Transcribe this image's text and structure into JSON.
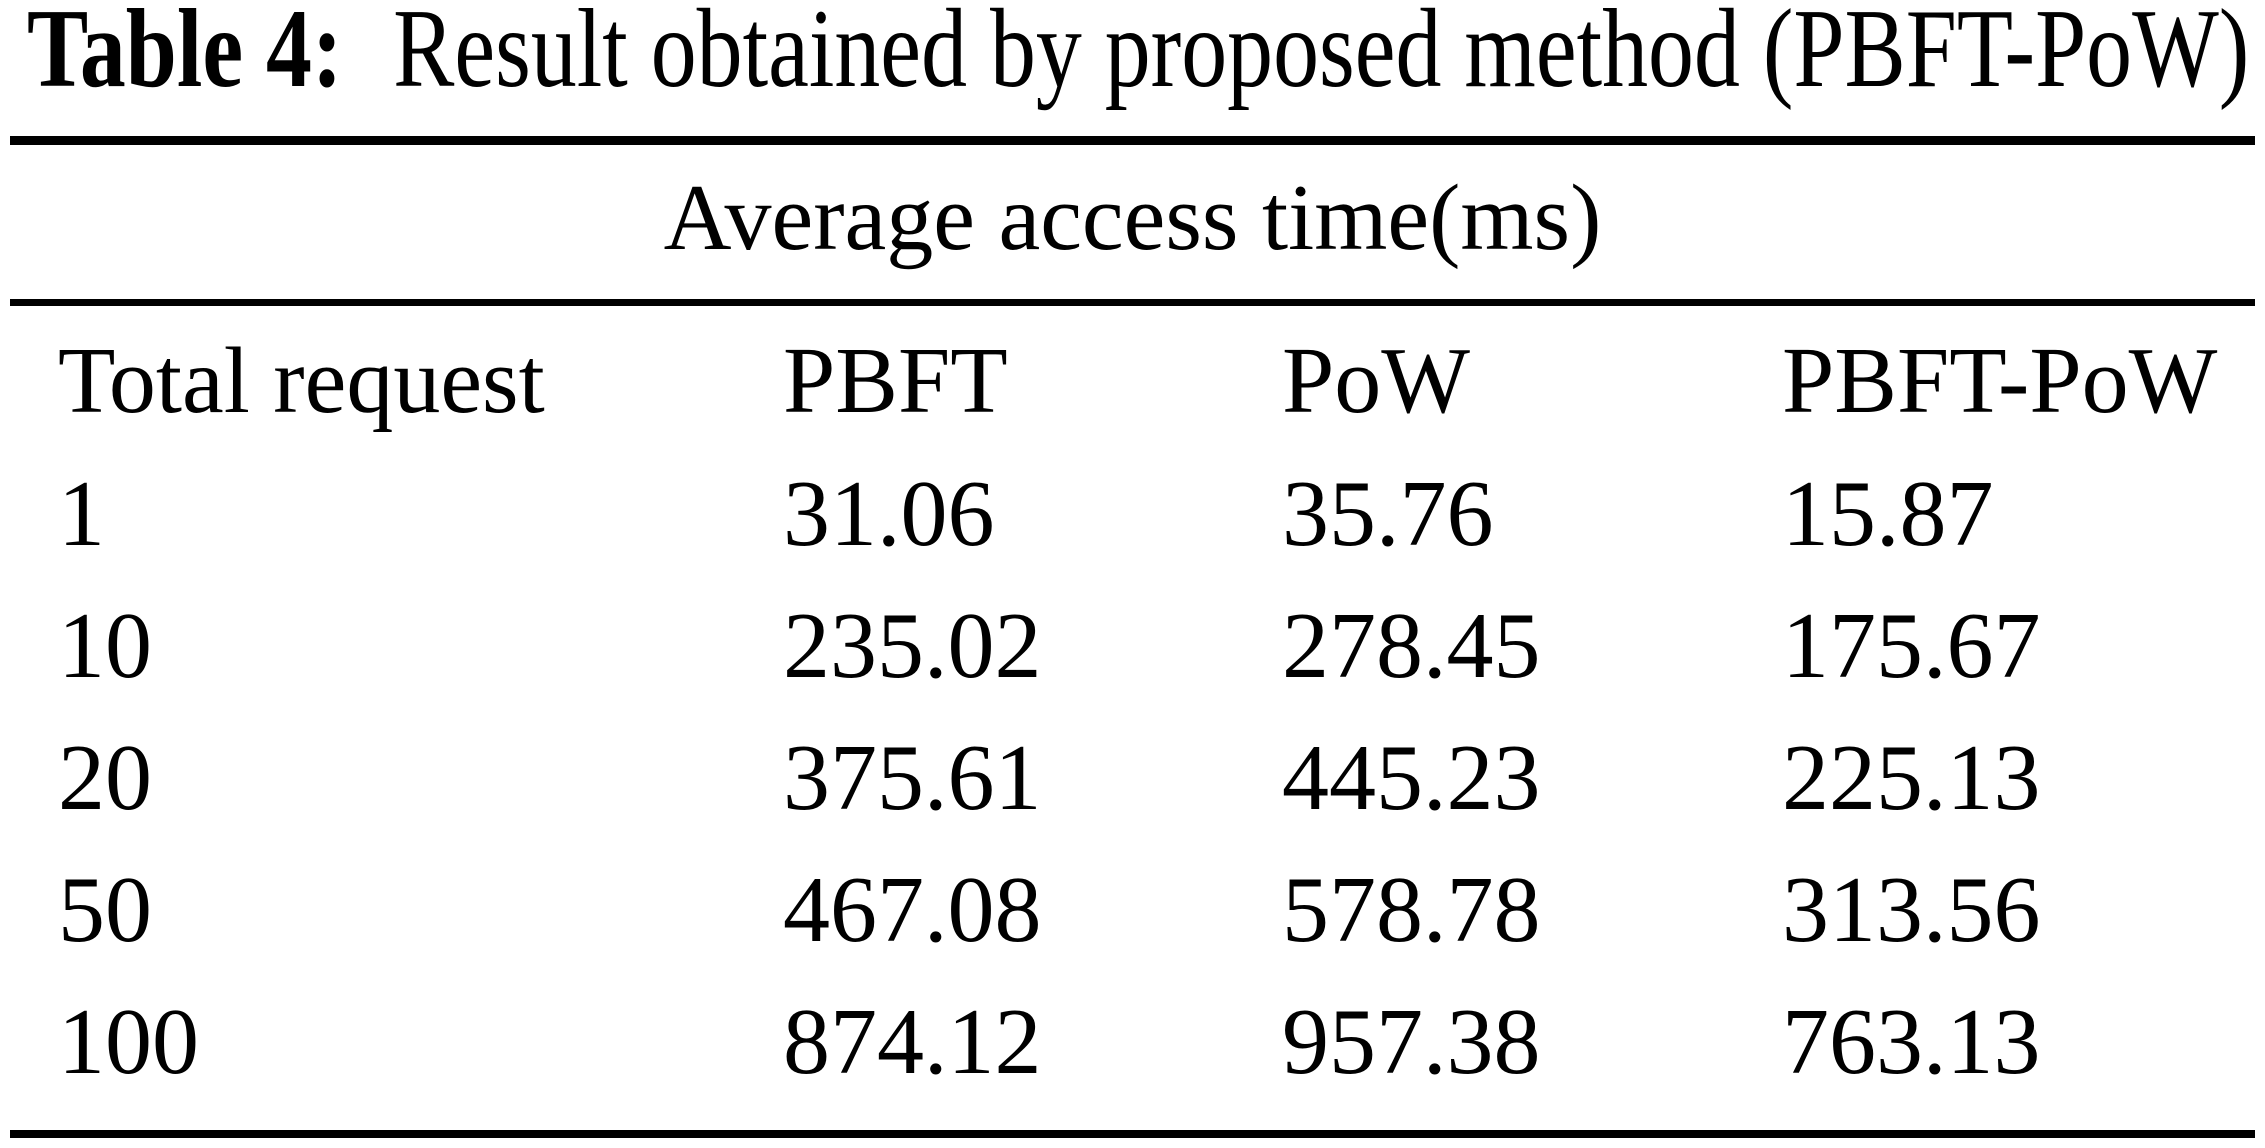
{
  "page": {
    "background": "#ffffff",
    "text_color": "#000000"
  },
  "caption": {
    "label": "Table 4:",
    "text": "Result obtained by proposed method (PBFT-PoW)"
  },
  "table": {
    "span_header": "Average access time(ms)",
    "columns": [
      "Total request",
      "PBFT",
      "PoW",
      "PBFT-PoW"
    ],
    "rows": [
      [
        "1",
        "31.06",
        "35.76",
        "15.87"
      ],
      [
        "10",
        "235.02",
        "278.45",
        "175.67"
      ],
      [
        "20",
        "375.61",
        "445.23",
        "225.13"
      ],
      [
        "50",
        "467.08",
        "578.78",
        "313.56"
      ],
      [
        "100",
        "874.12",
        "957.38",
        "763.13"
      ]
    ]
  },
  "chart_data": {
    "type": "table",
    "title": "Table 4: Result obtained by proposed method (PBFT-PoW)",
    "group_header": "Average access time(ms)",
    "columns": [
      "Total request",
      "PBFT",
      "PoW",
      "PBFT-PoW"
    ],
    "rows": [
      [
        1,
        31.06,
        35.76,
        15.87
      ],
      [
        10,
        235.02,
        278.45,
        175.67
      ],
      [
        20,
        375.61,
        445.23,
        225.13
      ],
      [
        50,
        467.08,
        578.78,
        313.56
      ],
      [
        100,
        874.12,
        957.38,
        763.13
      ]
    ]
  }
}
